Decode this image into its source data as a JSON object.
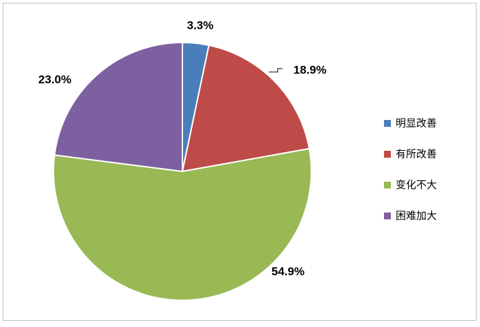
{
  "chart_data": {
    "type": "pie",
    "categories": [
      "明显改善",
      "有所改善",
      "变化不大",
      "困难加大"
    ],
    "values": [
      3.3,
      18.9,
      54.9,
      23.0
    ],
    "value_labels": [
      "3.3%",
      "18.9%",
      "54.9%",
      "23.0%"
    ],
    "colors": [
      "#4a7ebb",
      "#be4b48",
      "#98b954",
      "#7d60a0"
    ],
    "legend": "right"
  }
}
